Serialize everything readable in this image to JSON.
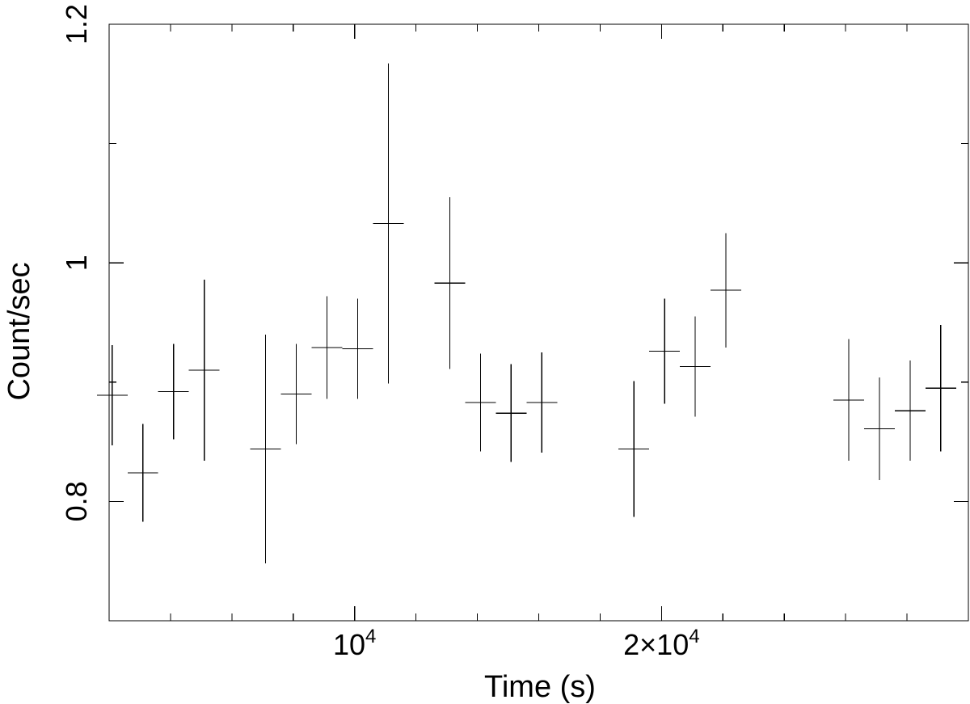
{
  "chart_data": {
    "type": "scatter",
    "style": "light-curve crosses with x and y error bars",
    "xlabel": "Time (s)",
    "ylabel": "Count/sec",
    "xlim": [
      2000,
      30000
    ],
    "ylim": [
      0.7,
      1.2
    ],
    "grid": false,
    "legend": "none",
    "color": "#000000",
    "x_ticks": [
      {
        "value": 10000,
        "base": "10",
        "exp": "4"
      },
      {
        "value": 20000,
        "base": "2×10",
        "exp": "4"
      }
    ],
    "x_minor_step": 2000,
    "y_ticks": [
      {
        "value": 0.8,
        "label": "0.8"
      },
      {
        "value": 1.0,
        "label": "1"
      },
      {
        "value": 1.2,
        "label": "1.2"
      }
    ],
    "y_minor_step": 0.1,
    "points": [
      {
        "x": 2100,
        "xerr": 500,
        "y": 0.889,
        "yerr": 0.042
      },
      {
        "x": 3100,
        "xerr": 500,
        "y": 0.824,
        "yerr": 0.041
      },
      {
        "x": 4100,
        "xerr": 500,
        "y": 0.892,
        "yerr": 0.04
      },
      {
        "x": 5100,
        "xerr": 500,
        "y": 0.91,
        "yerr": 0.076
      },
      {
        "x": 7100,
        "xerr": 500,
        "y": 0.844,
        "yerr": 0.096
      },
      {
        "x": 8100,
        "xerr": 500,
        "y": 0.89,
        "yerr": 0.042
      },
      {
        "x": 9100,
        "xerr": 500,
        "y": 0.929,
        "yerr": 0.043
      },
      {
        "x": 10100,
        "xerr": 500,
        "y": 0.928,
        "yerr": 0.042
      },
      {
        "x": 11100,
        "xerr": 500,
        "y": 1.033,
        "yerr": 0.134
      },
      {
        "x": 13100,
        "xerr": 500,
        "y": 0.983,
        "yerr": 0.072
      },
      {
        "x": 14100,
        "xerr": 500,
        "y": 0.883,
        "yerr": 0.041
      },
      {
        "x": 15100,
        "xerr": 500,
        "y": 0.874,
        "yerr": 0.041
      },
      {
        "x": 16100,
        "xerr": 500,
        "y": 0.883,
        "yerr": 0.042
      },
      {
        "x": 19100,
        "xerr": 500,
        "y": 0.844,
        "yerr": 0.057
      },
      {
        "x": 20100,
        "xerr": 500,
        "y": 0.926,
        "yerr": 0.044
      },
      {
        "x": 21100,
        "xerr": 500,
        "y": 0.913,
        "yerr": 0.042
      },
      {
        "x": 22100,
        "xerr": 500,
        "y": 0.977,
        "yerr": 0.048
      },
      {
        "x": 26100,
        "xerr": 500,
        "y": 0.885,
        "yerr": 0.051
      },
      {
        "x": 27100,
        "xerr": 500,
        "y": 0.861,
        "yerr": 0.043
      },
      {
        "x": 28100,
        "xerr": 500,
        "y": 0.876,
        "yerr": 0.042
      },
      {
        "x": 29100,
        "xerr": 500,
        "y": 0.895,
        "yerr": 0.053
      }
    ]
  }
}
